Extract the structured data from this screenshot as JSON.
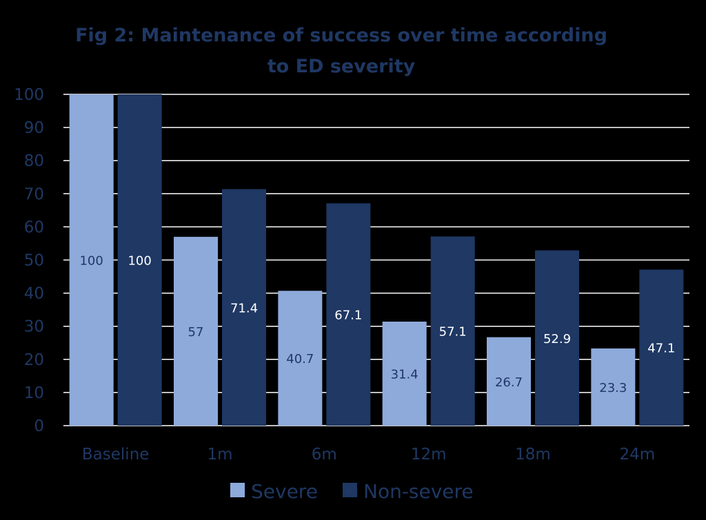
{
  "colors": {
    "background": "#000000",
    "text": "#1f3864",
    "gridline": "#ffffff",
    "severe": "#8eaadb",
    "non_severe": "#1f3864",
    "severe_label": "#1f3864",
    "non_severe_label": "#ffffff"
  },
  "chart_data": {
    "type": "bar",
    "title_lines": [
      "Fig 2: Maintenance of success over time according",
      "to ED severity"
    ],
    "categories": [
      "Baseline",
      "1m",
      "6m",
      "12m",
      "18m",
      "24m"
    ],
    "series": [
      {
        "name": "Severe",
        "values": [
          100,
          57,
          40.7,
          31.4,
          26.7,
          23.3
        ],
        "labels": [
          "100",
          "57",
          "40.7",
          "31.4",
          "26.7",
          "23.3"
        ]
      },
      {
        "name": "Non-severe",
        "values": [
          100,
          71.4,
          67.1,
          57.1,
          52.9,
          47.1
        ],
        "labels": [
          "100",
          "71.4",
          "67.1",
          "57.1",
          "52.9",
          "47.1"
        ]
      }
    ],
    "ylim": [
      0,
      100
    ],
    "yticks": [
      0,
      10,
      20,
      30,
      40,
      50,
      60,
      70,
      80,
      90,
      100
    ],
    "ytick_labels": [
      "0",
      "10",
      "20",
      "30",
      "40",
      "50",
      "60",
      "70",
      "80",
      "90",
      "100"
    ],
    "grid": true,
    "legend_position": "bottom",
    "xlabel": "",
    "ylabel": ""
  }
}
